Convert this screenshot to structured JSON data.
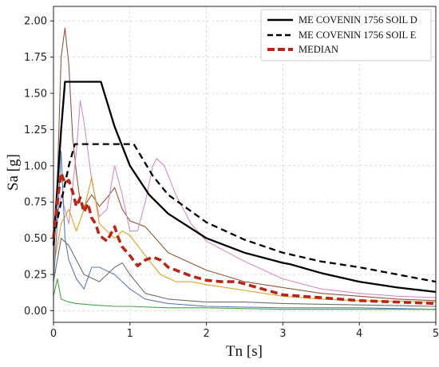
{
  "chart_data": {
    "type": "line",
    "xlabel": "Tn [s]",
    "ylabel": "Sa [g]",
    "xlim": [
      0,
      5
    ],
    "ylim": [
      -0.08,
      2.1
    ],
    "xticks": [
      0,
      1,
      2,
      3,
      4,
      5
    ],
    "yticks": [
      0.0,
      0.25,
      0.5,
      0.75,
      1.0,
      1.25,
      1.5,
      1.75,
      2.0
    ],
    "xtick_labels": [
      "0",
      "1",
      "2",
      "3",
      "4",
      "5"
    ],
    "ytick_labels": [
      "0.00",
      "0.25",
      "0.50",
      "0.75",
      "1.00",
      "1.25",
      "1.50",
      "1.75",
      "2.00"
    ],
    "grid": true,
    "legend_position": "top-right",
    "series": [
      {
        "name": "ME COVENIN 1756 SOIL D",
        "color": "#000000",
        "style": "solid",
        "legend": true,
        "x": [
          0,
          0.05,
          0.1,
          0.15,
          0.3,
          0.45,
          0.62,
          0.8,
          1.0,
          1.25,
          1.5,
          2.0,
          2.5,
          3.0,
          3.1,
          3.5,
          4.0,
          4.5,
          5.0
        ],
        "y": [
          0.45,
          0.85,
          1.25,
          1.58,
          1.58,
          1.58,
          1.58,
          1.27,
          1.0,
          0.8,
          0.67,
          0.5,
          0.4,
          0.33,
          0.32,
          0.26,
          0.2,
          0.16,
          0.13
        ]
      },
      {
        "name": "ME COVENIN 1756 SOIL E",
        "color": "#000000",
        "style": "dashed",
        "legend": true,
        "x": [
          0,
          0.1,
          0.2,
          0.28,
          0.6,
          1.05,
          1.3,
          1.5,
          2.0,
          2.5,
          3.0,
          3.5,
          4.0,
          4.5,
          5.0
        ],
        "y": [
          0.5,
          0.75,
          1.0,
          1.15,
          1.15,
          1.15,
          0.93,
          0.8,
          0.61,
          0.49,
          0.4,
          0.34,
          0.3,
          0.25,
          0.2
        ]
      },
      {
        "name": "MEDIAN",
        "color": "#b5271b",
        "style": "thick-dashed",
        "legend": true,
        "x": [
          0,
          0.05,
          0.1,
          0.15,
          0.2,
          0.25,
          0.3,
          0.35,
          0.4,
          0.45,
          0.5,
          0.55,
          0.6,
          0.7,
          0.8,
          0.85,
          0.9,
          1.0,
          1.1,
          1.2,
          1.3,
          1.4,
          1.5,
          1.6,
          1.8,
          2.0,
          2.2,
          2.4,
          2.6,
          2.8,
          3.0,
          3.5,
          4.0,
          4.5,
          5.0
        ],
        "y": [
          0.5,
          0.75,
          0.95,
          0.88,
          0.9,
          0.82,
          0.72,
          0.78,
          0.68,
          0.74,
          0.64,
          0.6,
          0.52,
          0.48,
          0.58,
          0.5,
          0.44,
          0.38,
          0.31,
          0.35,
          0.37,
          0.35,
          0.3,
          0.28,
          0.24,
          0.21,
          0.2,
          0.2,
          0.17,
          0.14,
          0.11,
          0.09,
          0.07,
          0.06,
          0.05
        ]
      },
      {
        "name": "",
        "color": "#8b5a3c",
        "style": "solid",
        "legend": false,
        "x": [
          0,
          0.05,
          0.1,
          0.15,
          0.2,
          0.25,
          0.3,
          0.35,
          0.4,
          0.5,
          0.6,
          0.7,
          0.8,
          0.9,
          1.0,
          1.2,
          1.5,
          2.0,
          2.5,
          3.0,
          3.5,
          4.0,
          4.5,
          5.0
        ],
        "y": [
          0.3,
          0.9,
          1.75,
          1.95,
          1.7,
          1.2,
          0.95,
          0.75,
          0.72,
          0.8,
          0.72,
          0.78,
          0.85,
          0.7,
          0.62,
          0.58,
          0.4,
          0.28,
          0.2,
          0.16,
          0.12,
          0.1,
          0.08,
          0.07
        ]
      },
      {
        "name": "",
        "color": "#cf8ec2",
        "style": "solid",
        "legend": false,
        "x": [
          0,
          0.1,
          0.2,
          0.3,
          0.35,
          0.4,
          0.5,
          0.6,
          0.7,
          0.8,
          0.9,
          1.0,
          1.1,
          1.2,
          1.3,
          1.35,
          1.45,
          1.6,
          1.8,
          2.0,
          2.5,
          3.0,
          3.5,
          4.0,
          4.5,
          5.0
        ],
        "y": [
          0.5,
          0.8,
          0.6,
          1.1,
          1.45,
          1.3,
          0.9,
          0.65,
          0.7,
          1.0,
          0.8,
          0.55,
          0.55,
          0.75,
          1.0,
          1.05,
          1.0,
          0.8,
          0.6,
          0.48,
          0.34,
          0.22,
          0.15,
          0.12,
          0.1,
          0.09
        ]
      },
      {
        "name": "",
        "color": "#d4a328",
        "style": "solid",
        "legend": false,
        "x": [
          0,
          0.1,
          0.2,
          0.3,
          0.4,
          0.5,
          0.6,
          0.7,
          0.8,
          0.9,
          1.0,
          1.2,
          1.4,
          1.6,
          1.8,
          2.0,
          2.5,
          3.0,
          3.5,
          4.0,
          5.0
        ],
        "y": [
          0.3,
          0.6,
          0.7,
          0.55,
          0.7,
          0.92,
          0.6,
          0.55,
          0.5,
          0.55,
          0.52,
          0.38,
          0.25,
          0.2,
          0.2,
          0.18,
          0.14,
          0.1,
          0.08,
          0.07,
          0.06
        ]
      },
      {
        "name": "",
        "color": "#5b7bb5",
        "style": "solid",
        "legend": false,
        "x": [
          0,
          0.05,
          0.1,
          0.15,
          0.2,
          0.3,
          0.4,
          0.5,
          0.6,
          0.8,
          1.0,
          1.2,
          1.5,
          2.0,
          3.0,
          4.0,
          5.0
        ],
        "y": [
          0.2,
          0.6,
          1.1,
          0.5,
          0.35,
          0.22,
          0.15,
          0.3,
          0.3,
          0.25,
          0.15,
          0.08,
          0.05,
          0.03,
          0.02,
          0.02,
          0.01
        ]
      },
      {
        "name": "",
        "color": "#6e6e6e",
        "style": "solid",
        "legend": false,
        "x": [
          0,
          0.1,
          0.2,
          0.3,
          0.4,
          0.6,
          0.8,
          0.9,
          1.0,
          1.2,
          1.5,
          2.0,
          2.5,
          3.0,
          4.0,
          5.0
        ],
        "y": [
          0.2,
          0.5,
          0.45,
          0.35,
          0.25,
          0.2,
          0.3,
          0.33,
          0.25,
          0.12,
          0.08,
          0.06,
          0.06,
          0.05,
          0.04,
          0.03
        ]
      },
      {
        "name": "",
        "color": "#4aa048",
        "style": "solid",
        "legend": false,
        "x": [
          0,
          0.05,
          0.1,
          0.15,
          0.2,
          0.3,
          0.5,
          0.8,
          1.0,
          1.5,
          2.0,
          3.0,
          4.0,
          5.0
        ],
        "y": [
          0.1,
          0.22,
          0.08,
          0.07,
          0.06,
          0.05,
          0.04,
          0.03,
          0.03,
          0.02,
          0.02,
          0.01,
          0.01,
          0.01
        ]
      }
    ]
  }
}
